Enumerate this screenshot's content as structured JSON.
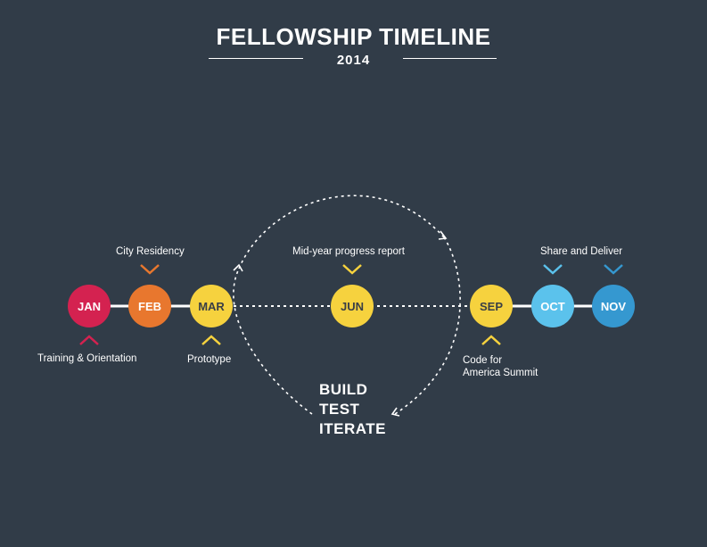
{
  "title": "FELLOWSHIP TIMELINE",
  "year": "2014",
  "colors": {
    "background": "#313c48",
    "jan": "#d42250",
    "feb": "#e8772e",
    "mar": "#f6d23e",
    "jun": "#f6d23e",
    "sep": "#f6d23e",
    "oct": "#5bc2ec",
    "nov": "#3598d0",
    "line": "#ffffff"
  },
  "months": [
    {
      "id": "jan",
      "label": "JAN"
    },
    {
      "id": "feb",
      "label": "FEB"
    },
    {
      "id": "mar",
      "label": "MAR"
    },
    {
      "id": "jun",
      "label": "JUN"
    },
    {
      "id": "sep",
      "label": "SEP"
    },
    {
      "id": "oct",
      "label": "OCT"
    },
    {
      "id": "nov",
      "label": "NOV"
    }
  ],
  "milestones": {
    "training": "Training & Orientation",
    "city_residency": "City Residency",
    "prototype": "Prototype",
    "midyear": "Mid-year progress report",
    "summit_line1": "Code for",
    "summit_line2": "America Summit",
    "share": "Share and Deliver"
  },
  "cycle": [
    "BUILD",
    "TEST",
    "ITERATE"
  ]
}
